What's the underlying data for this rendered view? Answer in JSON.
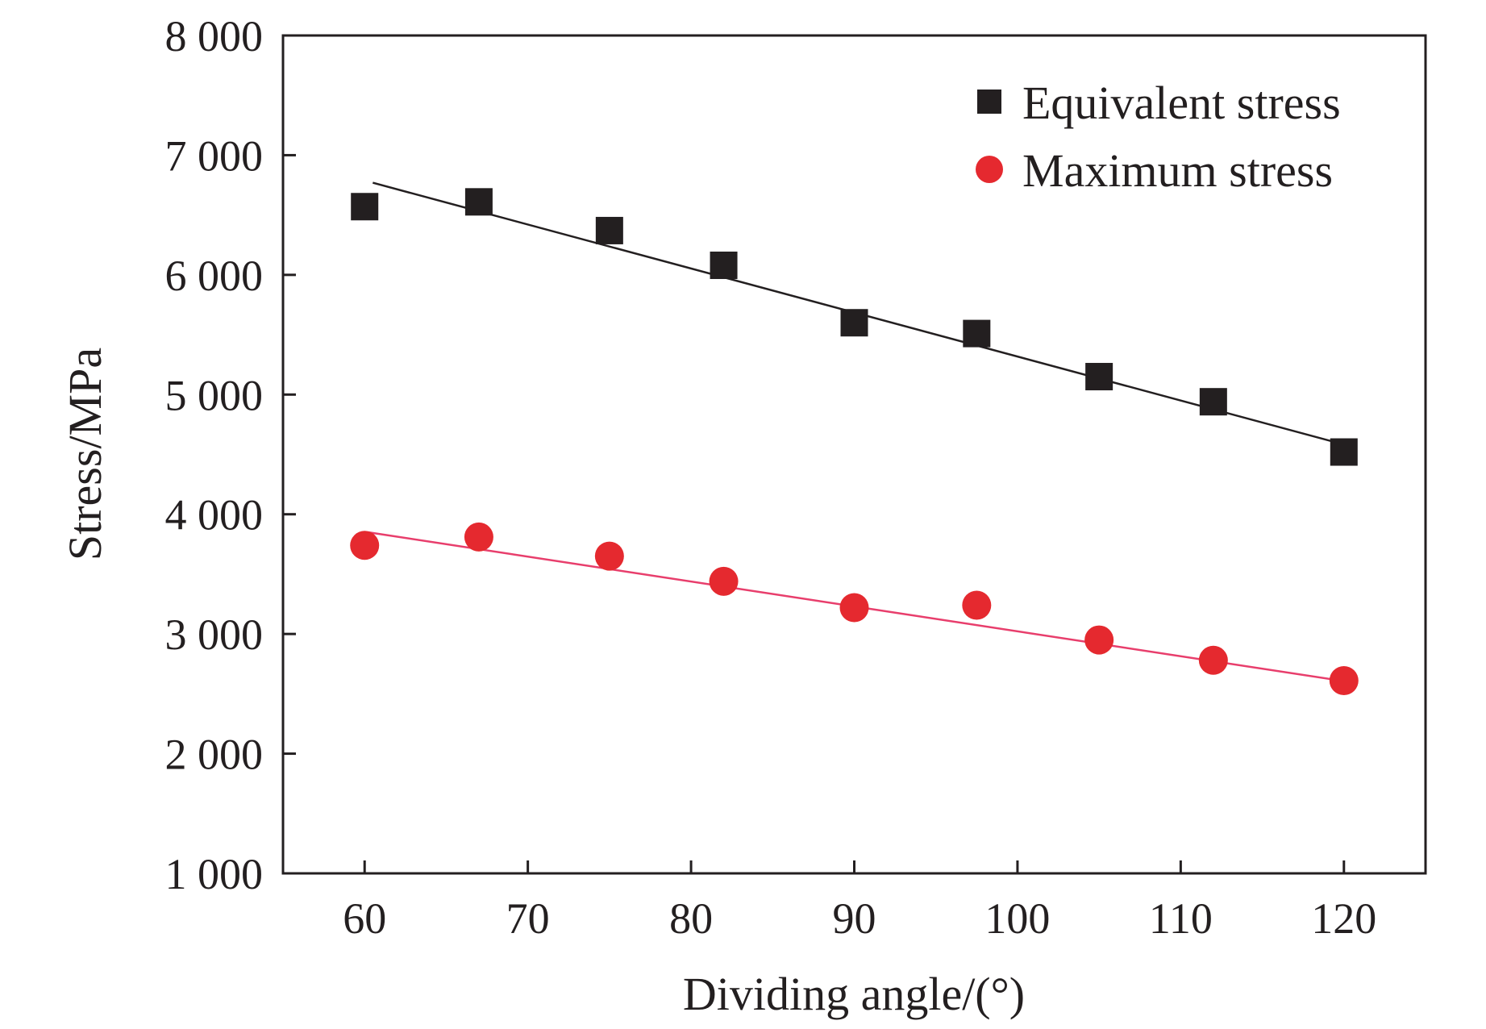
{
  "chart_data": {
    "type": "scatter",
    "title": "",
    "xlabel": "Dividing angle/(°)",
    "ylabel": "Stress/MPa",
    "xlim": [
      55,
      125
    ],
    "ylim": [
      1000,
      8000
    ],
    "xticks": [
      60,
      70,
      80,
      90,
      100,
      110,
      120
    ],
    "xtick_labels": [
      "60",
      "70",
      "80",
      "90",
      "100",
      "110",
      "120"
    ],
    "yticks": [
      1000,
      2000,
      3000,
      4000,
      5000,
      6000,
      7000,
      8000
    ],
    "ytick_labels": [
      "1 000",
      "2 000",
      "3 000",
      "4 000",
      "5 000",
      "6 000",
      "7 000",
      "8 000"
    ],
    "grid": false,
    "legend_position": "top-right",
    "series": [
      {
        "name": "Equivalent stress",
        "marker": "square",
        "color": "#231f20",
        "x": [
          60,
          67,
          75,
          82,
          90,
          97.5,
          105,
          112,
          120
        ],
        "y": [
          6570,
          6610,
          6370,
          6080,
          5600,
          5510,
          5150,
          4940,
          4520
        ],
        "fit": {
          "x": [
            60.5,
            119.8
          ],
          "y": [
            6770,
            4590
          ],
          "color": "#231f20"
        }
      },
      {
        "name": "Maximum stress",
        "marker": "circle",
        "color": "#e5292f",
        "x": [
          60,
          67,
          75,
          82,
          90,
          97.5,
          105,
          112,
          120
        ],
        "y": [
          3740,
          3810,
          3650,
          3440,
          3220,
          3240,
          2950,
          2780,
          2610
        ],
        "fit": {
          "x": [
            60.2,
            119.8
          ],
          "y": [
            3850,
            2610
          ],
          "color": "#e83e6c"
        }
      }
    ]
  }
}
